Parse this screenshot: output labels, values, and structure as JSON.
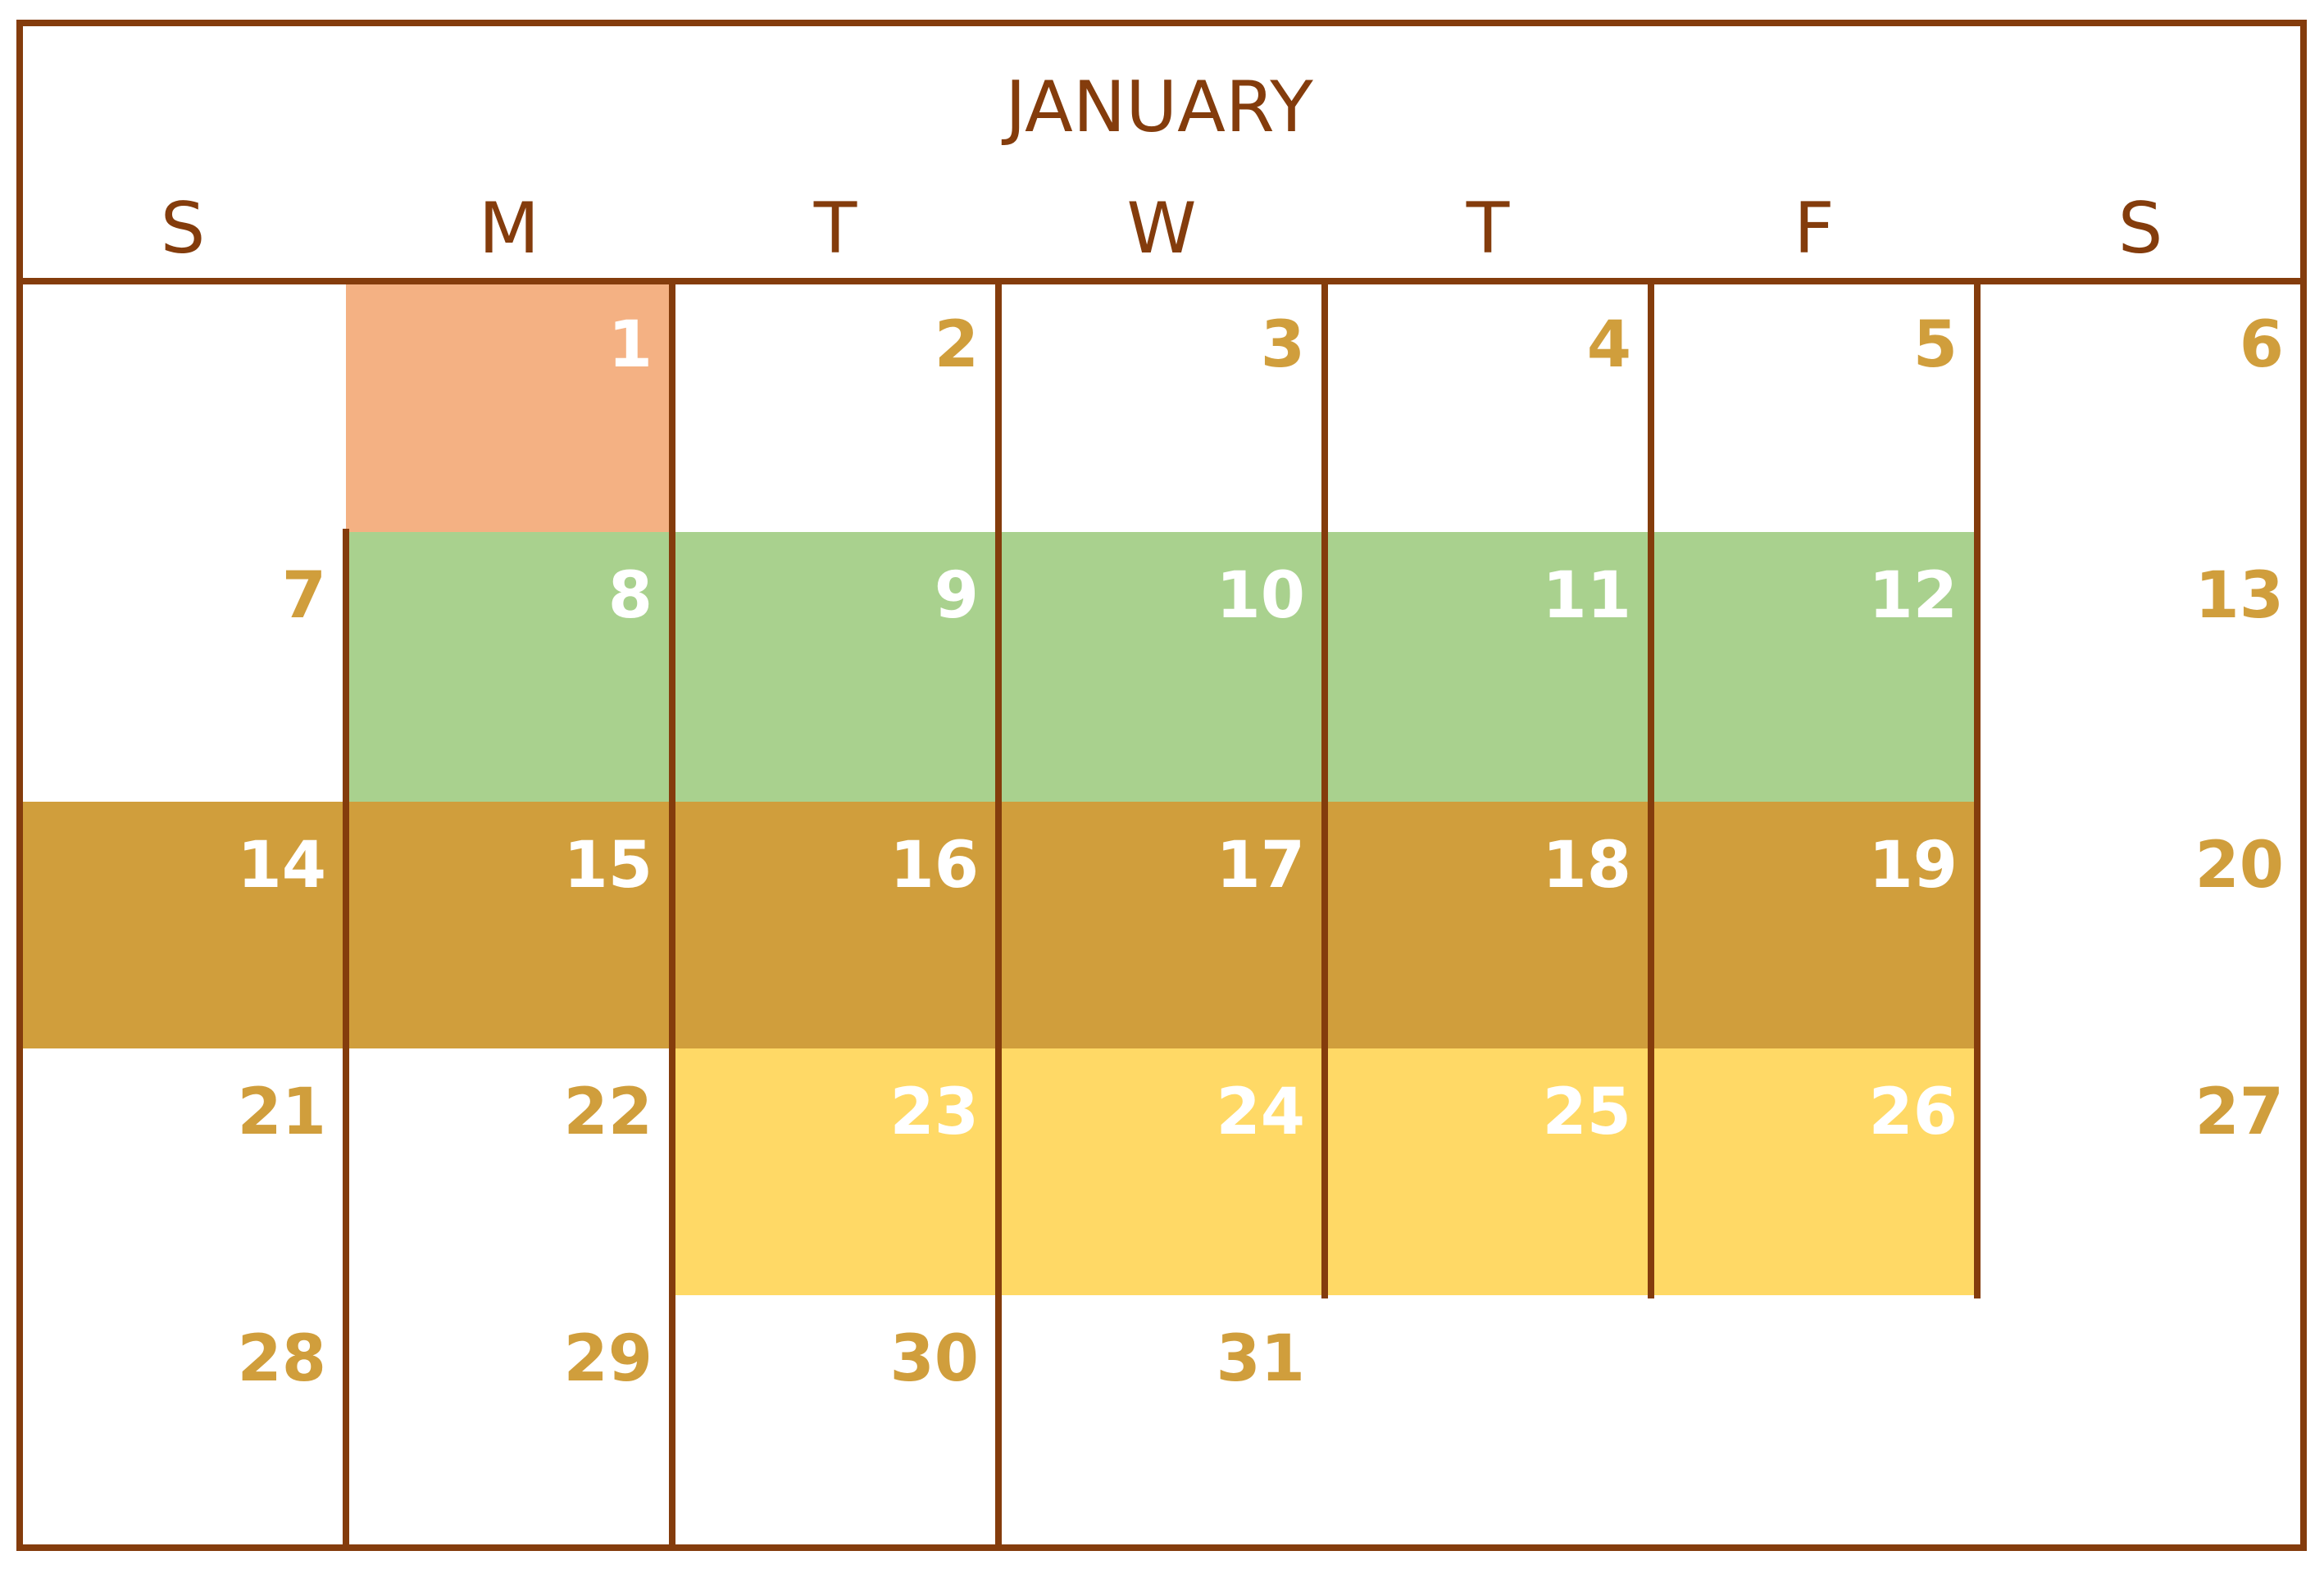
{
  "title": "JANUARY",
  "weekdays": [
    "S",
    "M",
    "T",
    "W",
    "T",
    "F",
    "S"
  ],
  "weeks": [
    [
      "",
      "1",
      "2",
      "3",
      "4",
      "5",
      "6"
    ],
    [
      "7",
      "8",
      "9",
      "10",
      "11",
      "12",
      "13"
    ],
    [
      "14",
      "15",
      "16",
      "17",
      "18",
      "19",
      "20"
    ],
    [
      "21",
      "22",
      "23",
      "24",
      "25",
      "26",
      "27"
    ],
    [
      "28",
      "29",
      "30",
      "31",
      "",
      "",
      ""
    ]
  ],
  "highlights": [
    {
      "color": "#f4b183",
      "days": [
        "1"
      ]
    },
    {
      "color": "#a9d18e",
      "days": [
        "8",
        "9",
        "10",
        "11",
        "12"
      ]
    },
    {
      "color": "#d09e3c",
      "days": [
        "14",
        "15",
        "16",
        "17",
        "18",
        "19"
      ]
    },
    {
      "color": "#ffd966",
      "days": [
        "23",
        "24",
        "25",
        "26"
      ]
    }
  ],
  "colors": {
    "border": "#843c0c",
    "header_text": "#843c0c",
    "day_text": "#d09e3c",
    "highlighted_day_text": "#ffffff",
    "background": "#ffffff"
  }
}
